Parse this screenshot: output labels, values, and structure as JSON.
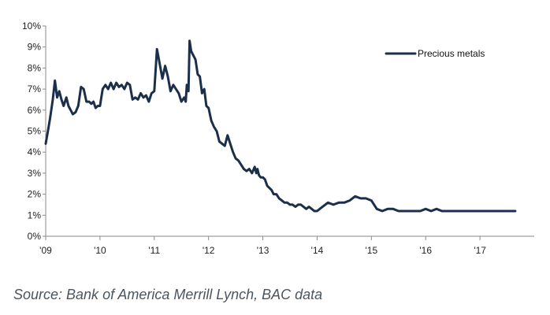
{
  "chart_data": {
    "type": "line",
    "title": "",
    "xlabel": "",
    "ylabel": "",
    "x_tick_labels": [
      "'09",
      "'10",
      "'11",
      "'12",
      "'13",
      "'14",
      "'15",
      "'16",
      "'17"
    ],
    "x_tick_values": [
      2009,
      2010,
      2011,
      2012,
      2013,
      2014,
      2015,
      2016,
      2017
    ],
    "xlim": [
      2009,
      2018
    ],
    "y_tick_labels": [
      "0%",
      "1%",
      "2%",
      "3%",
      "4%",
      "5%",
      "6%",
      "7%",
      "8%",
      "9%",
      "10%"
    ],
    "y_tick_values": [
      0,
      1,
      2,
      3,
      4,
      5,
      6,
      7,
      8,
      9,
      10
    ],
    "ylim": [
      0,
      10
    ],
    "y_unit": "%",
    "grid": false,
    "legend_placement": "top-right",
    "series": [
      {
        "name": "Precious metals",
        "color": "#1b2f4b",
        "x": [
          2009.0,
          2009.04,
          2009.08,
          2009.13,
          2009.17,
          2009.21,
          2009.25,
          2009.29,
          2009.33,
          2009.38,
          2009.42,
          2009.46,
          2009.5,
          2009.55,
          2009.6,
          2009.65,
          2009.7,
          2009.75,
          2009.8,
          2009.84,
          2009.88,
          2009.92,
          2009.96,
          2010.0,
          2010.05,
          2010.1,
          2010.15,
          2010.2,
          2010.25,
          2010.3,
          2010.35,
          2010.4,
          2010.45,
          2010.5,
          2010.55,
          2010.6,
          2010.65,
          2010.7,
          2010.75,
          2010.8,
          2010.85,
          2010.9,
          2010.95,
          2011.0,
          2011.05,
          2011.1,
          2011.15,
          2011.2,
          2011.25,
          2011.3,
          2011.35,
          2011.4,
          2011.45,
          2011.5,
          2011.55,
          2011.58,
          2011.6,
          2011.63,
          2011.65,
          2011.68,
          2011.72,
          2011.76,
          2011.8,
          2011.84,
          2011.88,
          2011.92,
          2011.96,
          2012.0,
          2012.05,
          2012.1,
          2012.15,
          2012.2,
          2012.25,
          2012.3,
          2012.35,
          2012.4,
          2012.45,
          2012.5,
          2012.55,
          2012.6,
          2012.65,
          2012.7,
          2012.75,
          2012.8,
          2012.85,
          2012.88,
          2012.9,
          2012.93,
          2012.96,
          2013.0,
          2013.04,
          2013.08,
          2013.12,
          2013.16,
          2013.2,
          2013.25,
          2013.3,
          2013.35,
          2013.4,
          2013.45,
          2013.5,
          2013.55,
          2013.6,
          2013.65,
          2013.7,
          2013.75,
          2013.8,
          2013.85,
          2013.9,
          2013.95,
          2014.0,
          2014.1,
          2014.2,
          2014.3,
          2014.4,
          2014.5,
          2014.6,
          2014.7,
          2014.8,
          2014.9,
          2015.0,
          2015.1,
          2015.2,
          2015.3,
          2015.4,
          2015.5,
          2015.6,
          2015.7,
          2015.8,
          2015.9,
          2016.0,
          2016.1,
          2016.2,
          2016.3,
          2016.4,
          2016.5,
          2016.6,
          2016.7,
          2016.8,
          2016.9,
          2017.0,
          2017.1,
          2017.2,
          2017.3,
          2017.4,
          2017.5,
          2017.6,
          2017.65
        ],
        "values": [
          4.4,
          5.0,
          5.6,
          6.5,
          7.4,
          6.6,
          6.9,
          6.5,
          6.2,
          6.6,
          6.2,
          6.0,
          5.8,
          5.9,
          6.2,
          7.1,
          7.0,
          6.4,
          6.4,
          6.3,
          6.4,
          6.1,
          6.2,
          6.2,
          7.0,
          7.2,
          7.0,
          7.3,
          7.0,
          7.3,
          7.1,
          7.2,
          7.0,
          7.3,
          7.2,
          6.5,
          6.6,
          6.5,
          6.8,
          6.6,
          6.7,
          6.4,
          6.8,
          6.9,
          8.9,
          8.2,
          7.5,
          8.1,
          7.6,
          6.9,
          7.2,
          7.0,
          6.8,
          6.4,
          6.6,
          6.4,
          7.2,
          6.9,
          9.3,
          8.8,
          8.6,
          8.4,
          7.7,
          7.6,
          6.8,
          7.0,
          6.2,
          6.1,
          5.5,
          5.2,
          5.0,
          4.5,
          4.4,
          4.3,
          4.8,
          4.4,
          4.0,
          3.7,
          3.6,
          3.4,
          3.2,
          3.1,
          3.2,
          3.0,
          3.3,
          3.0,
          3.2,
          2.9,
          2.8,
          2.8,
          2.7,
          2.4,
          2.3,
          2.2,
          2.0,
          2.0,
          1.8,
          1.7,
          1.6,
          1.6,
          1.5,
          1.5,
          1.4,
          1.5,
          1.5,
          1.4,
          1.3,
          1.4,
          1.3,
          1.2,
          1.2,
          1.4,
          1.6,
          1.5,
          1.6,
          1.6,
          1.7,
          1.9,
          1.8,
          1.8,
          1.7,
          1.3,
          1.2,
          1.3,
          1.3,
          1.2,
          1.2,
          1.2,
          1.2,
          1.2,
          1.3,
          1.2,
          1.3,
          1.2,
          1.2,
          1.2,
          1.2,
          1.2,
          1.2,
          1.2,
          1.2,
          1.2,
          1.2,
          1.2,
          1.2,
          1.2,
          1.2,
          1.2
        ]
      }
    ]
  },
  "source_note": "Source: Bank of America Merrill Lynch, BAC data"
}
